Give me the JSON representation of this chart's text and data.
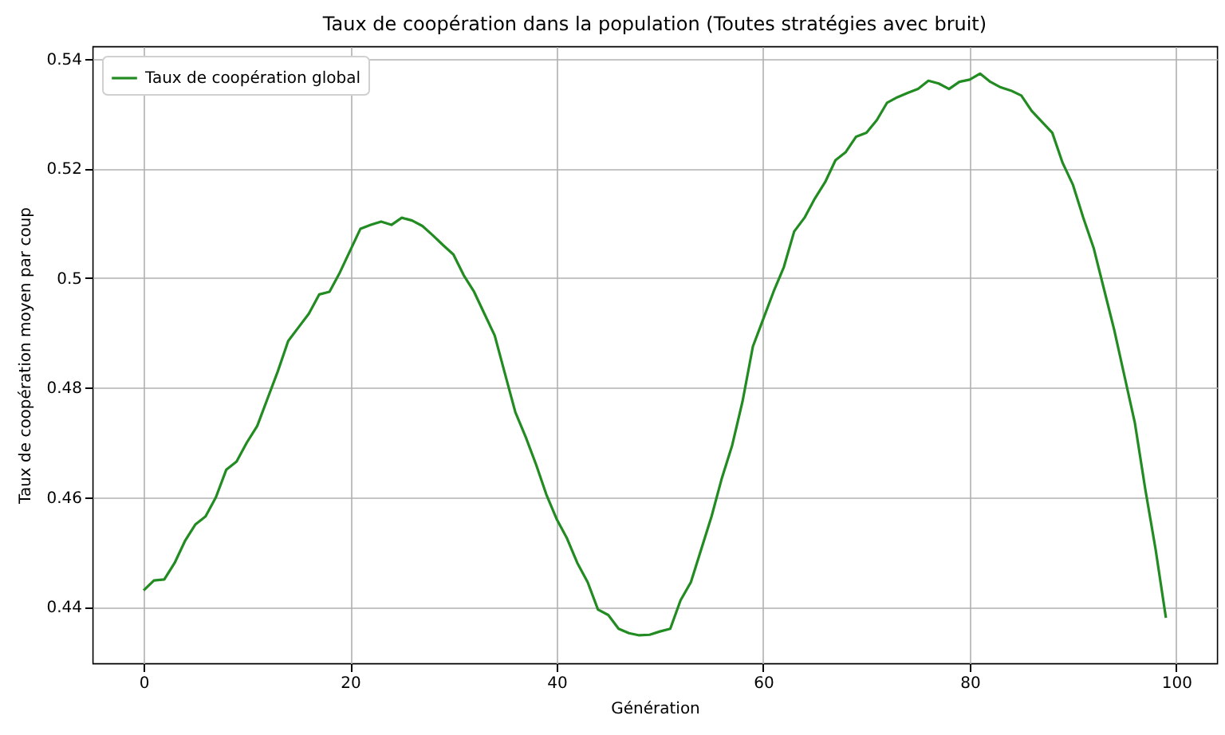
{
  "chart_data": {
    "type": "line",
    "title": "Taux de coopération dans la population (Toutes stratégies avec bruit)",
    "xlabel": "Génération",
    "ylabel": "Taux de coopération moyen par coup",
    "x": [
      0,
      1,
      2,
      3,
      4,
      5,
      6,
      7,
      8,
      9,
      10,
      11,
      12,
      13,
      14,
      15,
      16,
      17,
      18,
      19,
      20,
      21,
      22,
      23,
      24,
      25,
      26,
      27,
      28,
      29,
      30,
      31,
      32,
      33,
      34,
      35,
      36,
      37,
      38,
      39,
      40,
      41,
      42,
      43,
      44,
      45,
      46,
      47,
      48,
      49,
      50,
      51,
      52,
      53,
      54,
      55,
      56,
      57,
      58,
      59,
      60,
      61,
      62,
      63,
      64,
      65,
      66,
      67,
      68,
      69,
      70,
      71,
      72,
      73,
      74,
      75,
      76,
      77,
      78,
      79,
      80,
      81,
      82,
      83,
      84,
      85,
      86,
      87,
      88,
      89,
      90,
      91,
      92,
      93,
      94,
      95,
      96,
      97,
      98,
      99
    ],
    "series": [
      {
        "name": "Taux de coopération global",
        "color": "#228b22",
        "values": [
          0.443,
          0.4448,
          0.445,
          0.448,
          0.452,
          0.455,
          0.4565,
          0.46,
          0.465,
          0.4665,
          0.47,
          0.473,
          0.478,
          0.483,
          0.4885,
          0.491,
          0.4935,
          0.497,
          0.4975,
          0.501,
          0.505,
          0.509,
          0.5097,
          0.5103,
          0.5097,
          0.511,
          0.5105,
          0.5095,
          0.5078,
          0.506,
          0.5043,
          0.5005,
          0.4975,
          0.4935,
          0.4895,
          0.4825,
          0.4755,
          0.471,
          0.466,
          0.4605,
          0.456,
          0.4525,
          0.448,
          0.4445,
          0.4395,
          0.4385,
          0.436,
          0.4352,
          0.4348,
          0.4349,
          0.4355,
          0.436,
          0.4412,
          0.4445,
          0.4505,
          0.4565,
          0.4635,
          0.4695,
          0.4775,
          0.4875,
          0.4925,
          0.4975,
          0.502,
          0.5085,
          0.511,
          0.5145,
          0.5175,
          0.5215,
          0.523,
          0.5258,
          0.5265,
          0.5288,
          0.532,
          0.533,
          0.5338,
          0.5345,
          0.536,
          0.5355,
          0.5345,
          0.5358,
          0.5362,
          0.5373,
          0.5358,
          0.5348,
          0.5342,
          0.5333,
          0.5305,
          0.5285,
          0.5265,
          0.521,
          0.517,
          0.511,
          0.5055,
          0.498,
          0.4905,
          0.482,
          0.4735,
          0.4615,
          0.4505,
          0.438
        ]
      }
    ],
    "xlim": [
      -4.95,
      103.95
    ],
    "xticks": [
      0,
      20,
      40,
      60,
      80,
      100
    ],
    "ylim": [
      0.4297,
      0.5423
    ],
    "yticks": [
      0.44,
      0.46,
      0.48,
      0.5,
      0.52,
      0.54
    ],
    "grid": true,
    "legend": "top left"
  }
}
